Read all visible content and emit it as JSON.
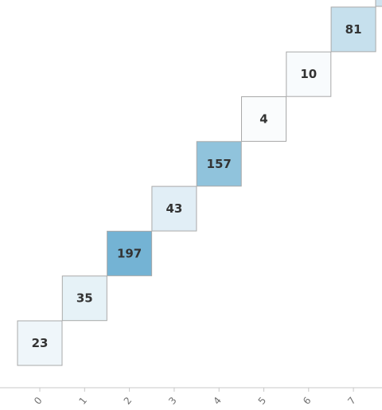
{
  "chart_data": {
    "type": "heatmap",
    "title": "",
    "xlabel": "",
    "ylabel": "",
    "x_ticks": [
      "0",
      "1",
      "2",
      "3",
      "4",
      "5",
      "6",
      "7"
    ],
    "cells": [
      {
        "x": 0,
        "y": 0,
        "value": 23
      },
      {
        "x": 1,
        "y": 1,
        "value": 35
      },
      {
        "x": 2,
        "y": 2,
        "value": 197
      },
      {
        "x": 3,
        "y": 3,
        "value": 43
      },
      {
        "x": 4,
        "y": 4,
        "value": 157
      },
      {
        "x": 5,
        "y": 5,
        "value": 4
      },
      {
        "x": 6,
        "y": 6,
        "value": 10
      },
      {
        "x": 7,
        "y": 7,
        "value": 81
      }
    ],
    "color_scale": {
      "min": 0,
      "max": 250,
      "low": "#ffffff",
      "high": "#4f9fc8"
    },
    "grid": false,
    "legend": "none"
  }
}
